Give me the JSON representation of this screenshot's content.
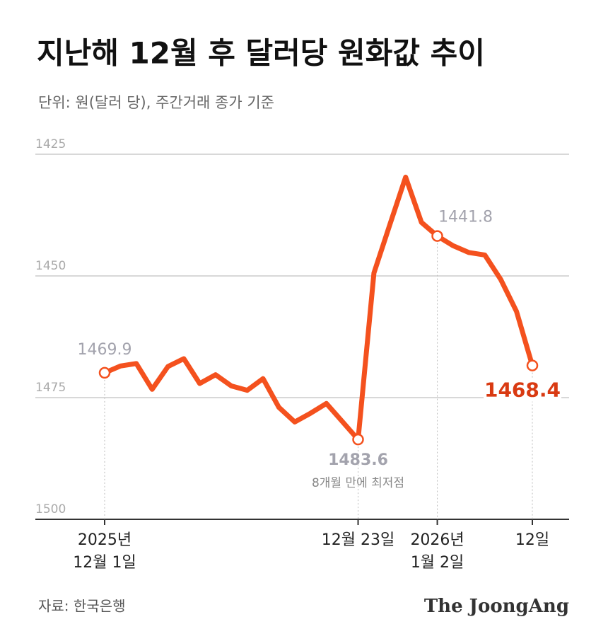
{
  "chart_data": {
    "type": "line",
    "title": "지난해 12월 후 달러당 원화값 추이",
    "subtitle": "단위: 원(달러 당), 주간거래 종가 기준",
    "source": "자료: 한국은행",
    "brand": "The JoongAng",
    "categories": [
      "2025년\n12월 1일",
      null,
      null,
      null,
      null,
      null,
      null,
      null,
      null,
      null,
      null,
      null,
      null,
      null,
      null,
      null,
      "12월 23일",
      null,
      null,
      null,
      null,
      "2026년\n1월 2일",
      null,
      null,
      null,
      null,
      null,
      "12일"
    ],
    "series": [
      {
        "name": "원화값",
        "color": "#f4511e",
        "values": [
          1469.9,
          1468.5,
          1468.0,
          1473.3,
          1468.6,
          1467.0,
          1472.1,
          1470.3,
          1472.6,
          1473.5,
          1471.1,
          1477.0,
          1480.0,
          1478.2,
          1476.2,
          1479.9,
          1483.6,
          1449.4,
          1439.5,
          1429.7,
          1439.0,
          1441.8,
          1443.8,
          1445.2,
          1445.7,
          1450.7,
          1457.3,
          1468.4
        ]
      }
    ],
    "markers": [
      0,
      16,
      21,
      27
    ],
    "annotations": [
      {
        "index": 16,
        "text": "8개월 만에 최저점"
      }
    ],
    "ylim": [
      1500,
      1425
    ],
    "yticks": [
      1425,
      1450,
      1475,
      1500
    ],
    "grid": true
  }
}
